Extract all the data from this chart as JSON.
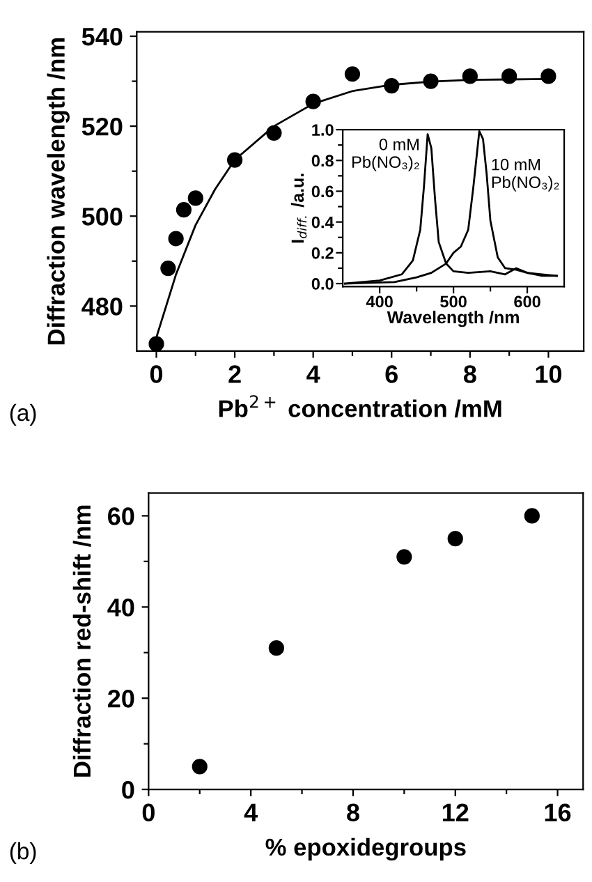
{
  "chart_data": [
    {
      "type": "scatter",
      "xlabel": "Pb$^{2+}$ concentration /mM",
      "ylabel": "Diffraction wavelength /nm",
      "annotations": [
        "(a)"
      ],
      "marker": "circle",
      "grid": false,
      "xlim": [
        -0.5,
        10.9
      ],
      "ylim": [
        470,
        541
      ],
      "xticks": [
        0,
        {
          "value": 1,
          "label": null
        },
        2,
        {
          "value": 3,
          "label": null
        },
        4,
        {
          "value": 5,
          "label": null
        },
        6,
        {
          "value": 7,
          "label": null
        },
        8,
        {
          "value": 9,
          "label": null
        },
        10
      ],
      "yticks": [
        480,
        {
          "value": 490,
          "label": null
        },
        500,
        {
          "value": 510,
          "label": null
        },
        520,
        {
          "value": 530,
          "label": null
        },
        540
      ],
      "series": [
        {
          "type": "scatter",
          "color": "#000000",
          "x": [
            0,
            0.3,
            0.5,
            0.7,
            1,
            2,
            3,
            4,
            5,
            6,
            7,
            8,
            9,
            10
          ],
          "values": [
            471.6,
            488.4,
            495,
            501.4,
            504,
            512.5,
            518.5,
            525.5,
            531.6,
            529,
            530,
            531.1,
            531.1,
            531.1
          ]
        },
        {
          "type": "line",
          "color": "#000000",
          "marker": "none",
          "x": [
            0,
            0.5,
            1,
            1.5,
            2,
            3,
            4,
            5,
            6,
            7,
            8,
            9,
            10
          ],
          "values": [
            473,
            487,
            498,
            506,
            512.5,
            520,
            525,
            527.8,
            529.2,
            529.9,
            530.3,
            530.4,
            530.5
          ]
        }
      ]
    },
    {
      "type": "line",
      "xlabel": "Wavelength /nm",
      "ylabel": "I$_{diff.}$ /a.u.",
      "grid": false,
      "marker": "none",
      "xlim": [
        350,
        650
      ],
      "ylim": [
        -0.02,
        1.0
      ],
      "xticks": [
        400,
        {
          "value": 450,
          "label": null
        },
        500,
        {
          "value": 550,
          "label": null
        },
        600
      ],
      "yticks": [
        {
          "value": 0,
          "label": "0.0"
        },
        {
          "value": 0.1,
          "label": null
        },
        {
          "value": 0.2,
          "label": "0.2"
        },
        {
          "value": 0.3,
          "label": null
        },
        {
          "value": 0.4,
          "label": "0.4"
        },
        {
          "value": 0.5,
          "label": null
        },
        {
          "value": 0.6,
          "label": "0.6"
        },
        {
          "value": 0.7,
          "label": null
        },
        {
          "value": 0.8,
          "label": "0.8"
        },
        {
          "value": 0.9,
          "label": null
        },
        {
          "value": 1.0,
          "label": "1.0"
        }
      ],
      "series": [
        {
          "name": "0 mM\nPb(NO₃)₂",
          "color": "#000000",
          "x": [
            353,
            400,
            430,
            445,
            455,
            460,
            465,
            470,
            475,
            480,
            490,
            500,
            520,
            550,
            570,
            585,
            600,
            620,
            640
          ],
          "values": [
            0,
            0.02,
            0.06,
            0.15,
            0.35,
            0.63,
            0.97,
            0.88,
            0.55,
            0.27,
            0.13,
            0.08,
            0.07,
            0.08,
            0.06,
            0.1,
            0.07,
            0.05,
            0.05
          ]
        },
        {
          "name": "10 mM\nPb(NO₃)₂",
          "color": "#000000",
          "x": [
            353,
            420,
            450,
            470,
            490,
            500,
            510,
            520,
            527,
            535,
            540,
            545,
            550,
            560,
            570,
            585,
            600,
            620,
            640
          ],
          "values": [
            0,
            0.01,
            0.04,
            0.07,
            0.13,
            0.2,
            0.24,
            0.35,
            0.63,
            0.99,
            0.94,
            0.71,
            0.41,
            0.17,
            0.1,
            0.09,
            0.07,
            0.06,
            0.05
          ]
        }
      ]
    },
    {
      "type": "scatter",
      "xlabel": "% epoxidegroups",
      "ylabel": "Diffraction red-shift /nm",
      "annotations": [
        "(b)"
      ],
      "marker": "circle",
      "grid": false,
      "xlim": [
        0,
        17
      ],
      "ylim": [
        0,
        65
      ],
      "xticks": [
        0,
        {
          "value": 2,
          "label": null
        },
        4,
        {
          "value": 6,
          "label": null
        },
        8,
        {
          "value": 10,
          "label": null
        },
        12,
        {
          "value": 14,
          "label": null
        },
        16
      ],
      "yticks": [
        0,
        {
          "value": 10,
          "label": null
        },
        20,
        {
          "value": 30,
          "label": null
        },
        40,
        {
          "value": 50,
          "label": null
        },
        60
      ],
      "series": [
        {
          "color": "#000000",
          "x": [
            2,
            5,
            10,
            12,
            15
          ],
          "values": [
            5,
            31,
            51,
            55,
            60
          ]
        }
      ]
    }
  ]
}
